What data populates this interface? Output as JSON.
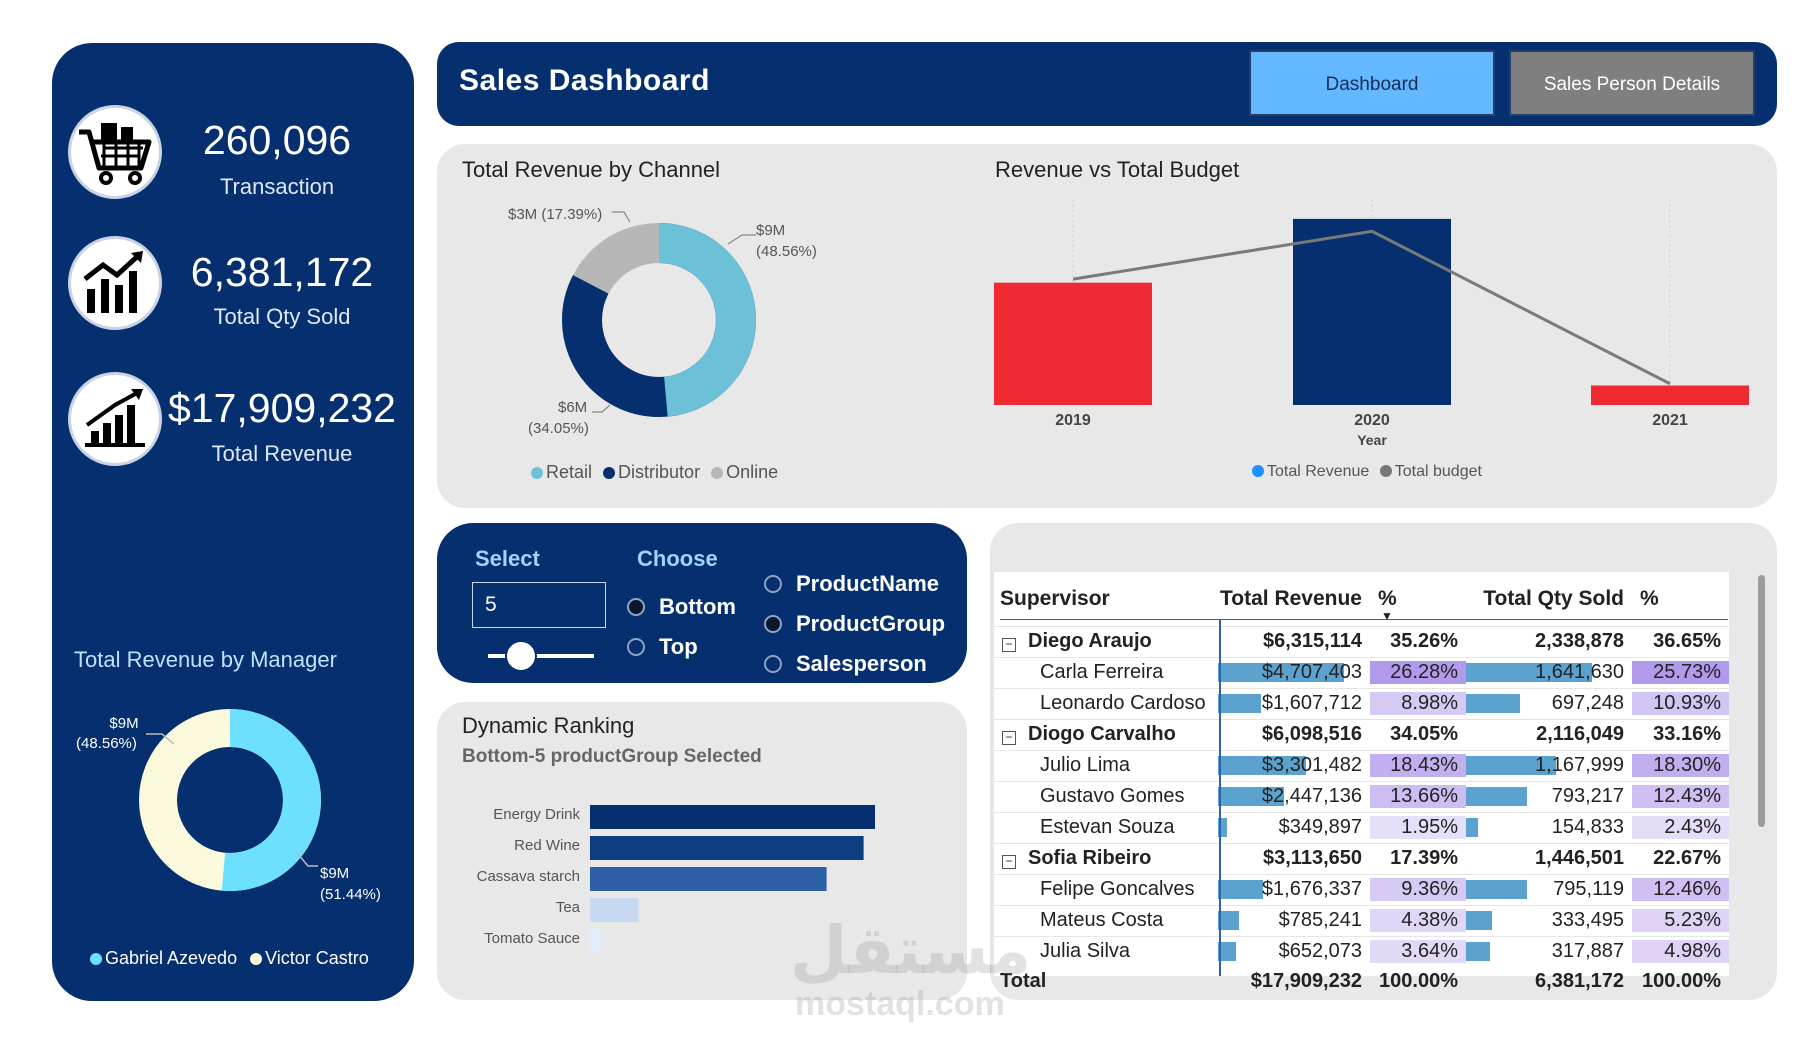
{
  "header": {
    "title": "Sales Dashboard",
    "nav": [
      {
        "label": "Dashboard",
        "active": true
      },
      {
        "label": "Sales Person Details",
        "active": false
      }
    ]
  },
  "kpis": [
    {
      "icon": "shopping-cart-icon",
      "value": "260,096",
      "label": "Transaction"
    },
    {
      "icon": "bar-chart-up-icon",
      "value": "6,381,172",
      "label": "Total Qty Sold"
    },
    {
      "icon": "growth-chart-icon",
      "value": "$17,909,232",
      "label": "Total Revenue"
    }
  ],
  "manager_chart": {
    "title": "Total Revenue by Manager",
    "label_top": "$9M",
    "label_top_pct": "(48.56%)",
    "label_bottom": "$9M",
    "label_bottom_pct": "(51.44%)",
    "legend": [
      "Gabriel Azevedo",
      "Victor Castro"
    ],
    "colors": [
      "#6ee0ff",
      "#fbf9dc"
    ]
  },
  "channel_chart": {
    "title": "Total Revenue by Channel",
    "label_online": "$3M (17.39%)",
    "label_retail": "$9M",
    "label_retail_pct": "(48.56%)",
    "label_distributor": "$6M",
    "label_distributor_pct": "(34.05%)",
    "legend": [
      "Retail",
      "Distributor",
      "Online"
    ],
    "colors": [
      "#6cc1d8",
      "#052f6e",
      "#b7b7b7"
    ]
  },
  "budget_chart": {
    "title": "Revenue vs Total Budget",
    "xlabel": "Year",
    "legend": [
      "Total Revenue",
      "Total budget"
    ],
    "legend_colors": [
      "#1e90ff",
      "#777777"
    ]
  },
  "selector": {
    "select_label": "Select",
    "choose_label": "Choose",
    "value": "5",
    "options_order": [
      "Bottom",
      "Top"
    ],
    "options_field": [
      "ProductName",
      "ProductGroup",
      "Salesperson"
    ]
  },
  "ranking": {
    "title": "Dynamic Ranking",
    "subtitle": "Bottom-5 productGroup Selected"
  },
  "matrix": {
    "headers": [
      "Supervisor",
      "Total Revenue",
      "%",
      "Total Qty Sold",
      "%"
    ],
    "groups": [
      {
        "name": "Diego Araujo",
        "revenue": "$6,315,114",
        "rev_pct": "35.26%",
        "qty": "2,338,878",
        "qty_pct": "36.65%",
        "rows": [
          {
            "name": "Carla Ferreira",
            "revenue": "$4,707,403",
            "rev_pct": "26.28%",
            "qty": "1,641,630",
            "qty_pct": "25.73%",
            "rev_v": 4707403,
            "rev_p": 26.28,
            "qty_v": 1641630,
            "qty_p": 25.73
          },
          {
            "name": "Leonardo Cardoso",
            "revenue": "$1,607,712",
            "rev_pct": "8.98%",
            "qty": "697,248",
            "qty_pct": "10.93%",
            "rev_v": 1607712,
            "rev_p": 8.98,
            "qty_v": 697248,
            "qty_p": 10.93
          }
        ]
      },
      {
        "name": "Diogo Carvalho",
        "revenue": "$6,098,516",
        "rev_pct": "34.05%",
        "qty": "2,116,049",
        "qty_pct": "33.16%",
        "rows": [
          {
            "name": "Julio Lima",
            "revenue": "$3,301,482",
            "rev_pct": "18.43%",
            "qty": "1,167,999",
            "qty_pct": "18.30%",
            "rev_v": 3301482,
            "rev_p": 18.43,
            "qty_v": 1167999,
            "qty_p": 18.3
          },
          {
            "name": "Gustavo Gomes",
            "revenue": "$2,447,136",
            "rev_pct": "13.66%",
            "qty": "793,217",
            "qty_pct": "12.43%",
            "rev_v": 2447136,
            "rev_p": 13.66,
            "qty_v": 793217,
            "qty_p": 12.43
          },
          {
            "name": "Estevan Souza",
            "revenue": "$349,897",
            "rev_pct": "1.95%",
            "qty": "154,833",
            "qty_pct": "2.43%",
            "rev_v": 349897,
            "rev_p": 1.95,
            "qty_v": 154833,
            "qty_p": 2.43
          }
        ]
      },
      {
        "name": "Sofia Ribeiro",
        "revenue": "$3,113,650",
        "rev_pct": "17.39%",
        "qty": "1,446,501",
        "qty_pct": "22.67%",
        "rows": [
          {
            "name": "Felipe Goncalves",
            "revenue": "$1,676,337",
            "rev_pct": "9.36%",
            "qty": "795,119",
            "qty_pct": "12.46%",
            "rev_v": 1676337,
            "rev_p": 9.36,
            "qty_v": 795119,
            "qty_p": 12.46
          },
          {
            "name": "Mateus Costa",
            "revenue": "$785,241",
            "rev_pct": "4.38%",
            "qty": "333,495",
            "qty_pct": "5.23%",
            "rev_v": 785241,
            "rev_p": 4.38,
            "qty_v": 333495,
            "qty_p": 5.23
          },
          {
            "name": "Julia Silva",
            "revenue": "$652,073",
            "rev_pct": "3.64%",
            "qty": "317,887",
            "qty_pct": "4.98%",
            "rev_v": 652073,
            "rev_p": 3.64,
            "qty_v": 317887,
            "qty_p": 4.98
          }
        ]
      }
    ],
    "total": {
      "name": "Total",
      "revenue": "$17,909,232",
      "rev_pct": "100.00%",
      "qty": "6,381,172",
      "qty_pct": "100.00%"
    }
  },
  "watermark": {
    "line1": "مستقل",
    "line2": "mostaql.com"
  },
  "chart_data": [
    {
      "type": "pie",
      "title": "Total Revenue by Manager",
      "categories": [
        "Gabriel Azevedo",
        "Victor Castro"
      ],
      "values": [
        51.44,
        48.56
      ],
      "unit": "%"
    },
    {
      "type": "pie",
      "title": "Total Revenue by Channel",
      "categories": [
        "Retail",
        "Distributor",
        "Online"
      ],
      "values": [
        48.56,
        34.05,
        17.39
      ],
      "unit": "%"
    },
    {
      "type": "bar",
      "title": "Revenue vs Total Budget",
      "xlabel": "Year",
      "categories": [
        "2019",
        "2020",
        "2021"
      ],
      "series": [
        {
          "name": "Total Revenue",
          "kind": "bar",
          "values": [
            6.9,
            10.5,
            1.1
          ],
          "colors": [
            "#ef2a33",
            "#052f6e",
            "#ef2a33"
          ]
        },
        {
          "name": "Total budget",
          "kind": "line",
          "values": [
            7.1,
            9.8,
            1.2
          ]
        }
      ],
      "ylim": [
        0,
        11
      ],
      "unit": "$M (approx.)"
    },
    {
      "type": "bar",
      "orientation": "horizontal",
      "title": "Dynamic Ranking",
      "categories": [
        "Energy Drink",
        "Red Wine",
        "Cassava starch",
        "Tea",
        "Tomato Sauce"
      ],
      "values": [
        100,
        96,
        83,
        17,
        4
      ],
      "unit": "relative (approx.)",
      "colors": [
        "#052f6e",
        "#0d3d80",
        "#2d5fa6",
        "#c7d8f2",
        "#e1ecfa"
      ]
    }
  ]
}
